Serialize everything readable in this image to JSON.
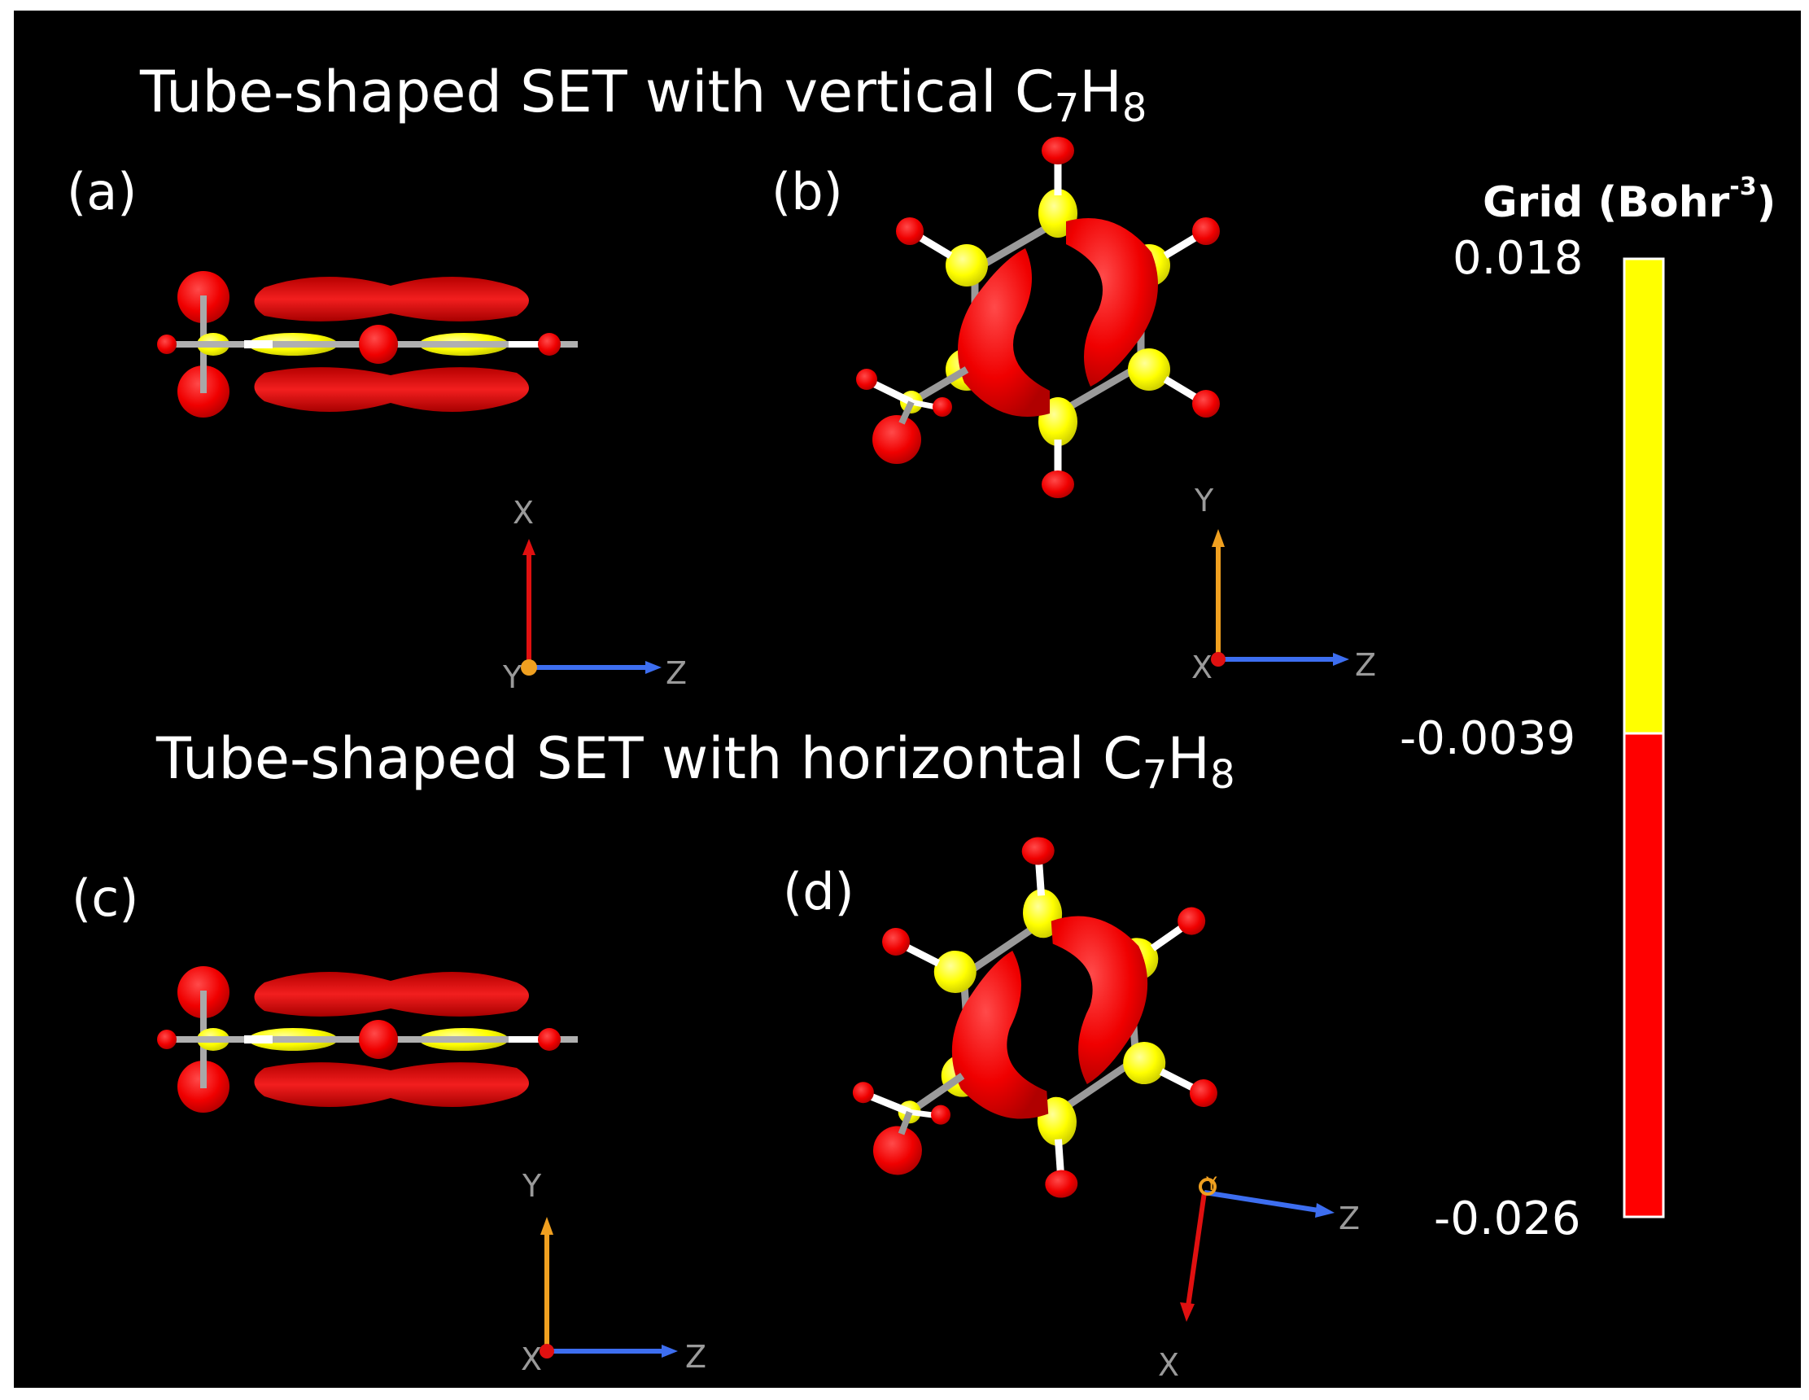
{
  "figure": {
    "title_top": "Tube-shaped SET with vertical C",
    "title_top_sub1": "7",
    "title_top_mid": "H",
    "title_top_sub2": "8",
    "title_bottom": "Tube-shaped SET with horizontal C",
    "title_bottom_sub1": "7",
    "title_bottom_mid": "H",
    "title_bottom_sub2": "8",
    "panels": [
      {
        "label": "(a)",
        "axes": {
          "up": "X",
          "right": "Z",
          "origin": "Y"
        }
      },
      {
        "label": "(b)",
        "axes": {
          "up": "Y",
          "right": "Z",
          "origin": "X"
        }
      },
      {
        "label": "(c)",
        "axes": {
          "up": "Y",
          "right": "Z",
          "origin": "X"
        }
      },
      {
        "label": "(d)",
        "axes": {
          "down": "X",
          "right": "Z",
          "origin": "Y"
        }
      }
    ]
  },
  "colorbar": {
    "title": "Grid (Bohr",
    "title_exp": "-3",
    "title_close": ")",
    "max_label": "0.018",
    "mid_label": "-0.0039",
    "min_label": "-0.026",
    "max": 0.018,
    "mid": -0.0039,
    "min": -0.026,
    "upper_color": "#ffff00",
    "lower_color": "#ff0000"
  },
  "colors": {
    "background": "#000000",
    "positive_isosurface": "#ffff00",
    "negative_isosurface": "#ff0000",
    "axis_x": "#e01010",
    "axis_y": "#f0a020",
    "axis_z": "#3d6ef0",
    "axis_label": "#9a9a9a",
    "bond": "#a0a0a0"
  }
}
